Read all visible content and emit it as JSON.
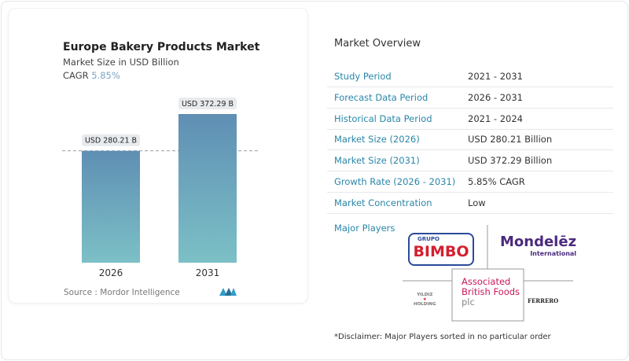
{
  "chart_data": {
    "type": "bar",
    "title": "Europe Bakery Products Market",
    "subtitle": "Market Size in USD Billion",
    "cagr_label": "CAGR",
    "cagr_value": "5.85%",
    "categories": [
      "2026",
      "2031"
    ],
    "values": [
      280.21,
      372.29
    ],
    "data_labels": [
      "USD 280.21 B",
      "USD 372.29 B"
    ],
    "ylim": [
      0,
      372.29
    ],
    "grid": false,
    "reference_line": "dashed at 2026 value",
    "bar_colors": [
      "#5f8fb4",
      "#7cc0c6"
    ],
    "source": "Source :  Mordor Intelligence"
  },
  "overview": {
    "title": "Market Overview",
    "rows": [
      {
        "label": "Study Period",
        "value": "2021 - 2031"
      },
      {
        "label": "Forecast Data Period",
        "value": "2026 - 2031"
      },
      {
        "label": "Historical Data Period",
        "value": "2021 - 2024"
      },
      {
        "label": "Market Size (2026)",
        "value": "USD 280.21 Billion"
      },
      {
        "label": "Market Size (2031)",
        "value": "USD 372.29 Billion"
      },
      {
        "label": "Growth Rate (2026 - 2031)",
        "value": "5.85% CAGR"
      },
      {
        "label": "Market Concentration",
        "value": "Low"
      }
    ],
    "major_players_label": "Major Players",
    "players": [
      "GRUPO BIMBO",
      "Mondelēz International",
      "Associated British Foods plc",
      "YILDIZ HOLDING",
      "FERRERO"
    ],
    "disclaimer": "*Disclaimer: Major Players sorted in no particular order"
  },
  "colors": {
    "accent": "#2a86a8"
  }
}
